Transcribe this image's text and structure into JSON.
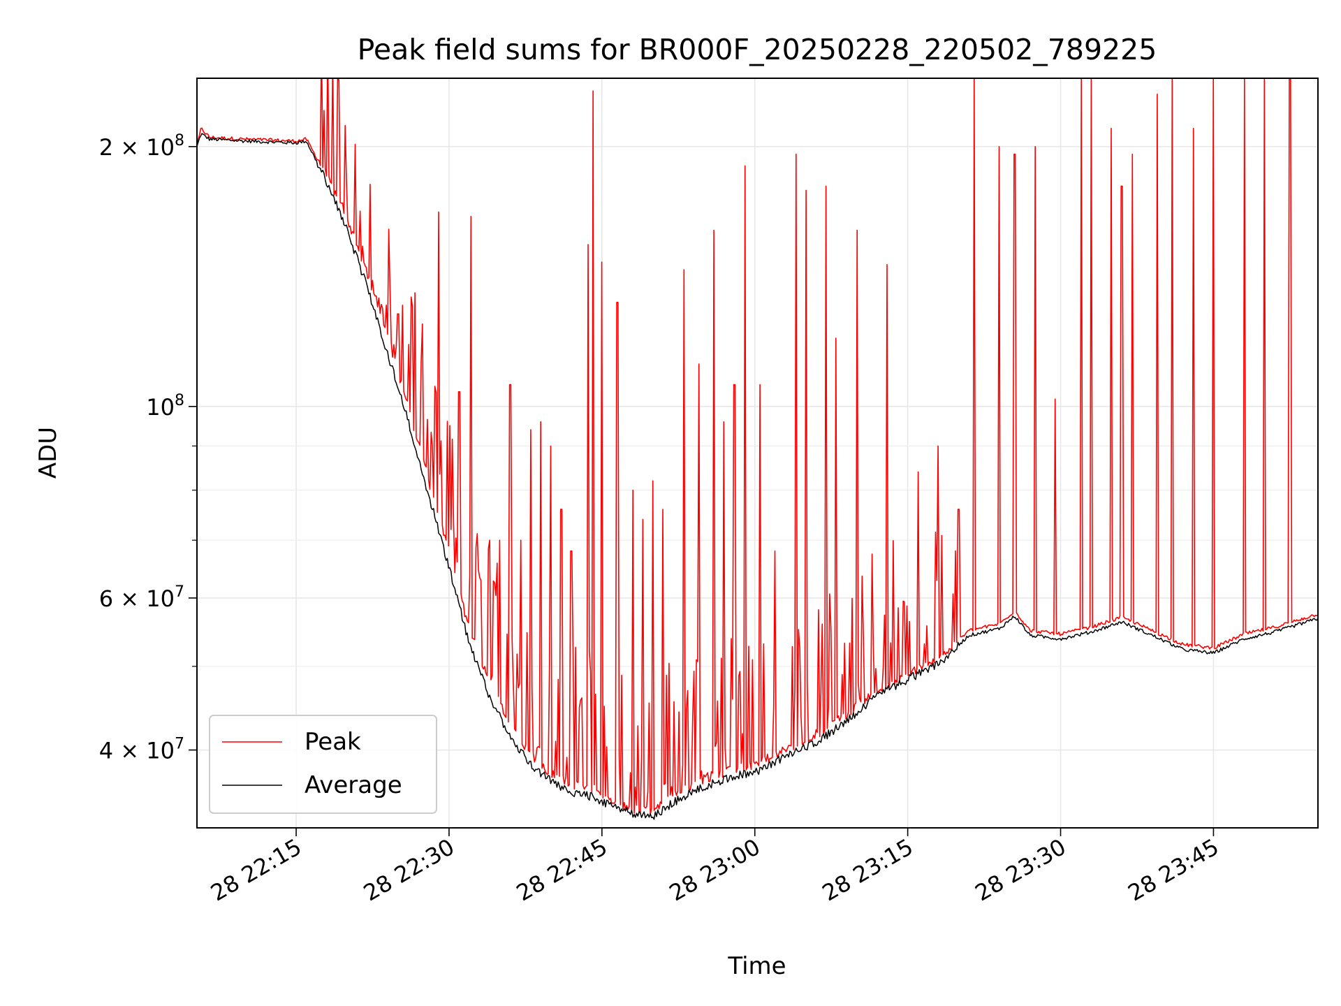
{
  "chart_data": {
    "type": "line",
    "title": "Peak field sums for BR000F_20250228_220502_789225",
    "xlabel": "Time",
    "ylabel": "ADU",
    "x_scale": "time",
    "y_scale": "log",
    "xlim": [
      "2025-02-28 22:05:16",
      "2025-02-28 23:55:15"
    ],
    "ylim": [
      32500000,
      240000000
    ],
    "grid": true,
    "legend": "lower-left",
    "x_tick_labels": [
      "28 22:15",
      "28 22:30",
      "28 22:45",
      "28 23:00",
      "28 23:15",
      "28 23:30",
      "28 23:45"
    ],
    "x_tick_values": [
      "2025-02-28 22:15",
      "2025-02-28 22:30",
      "2025-02-28 22:45",
      "2025-02-28 23:00",
      "2025-02-28 23:15",
      "2025-02-28 23:30",
      "2025-02-28 23:45"
    ],
    "y_major_ticks": [
      {
        "value": 40000000,
        "mantissa": "4",
        "exponent": "7"
      },
      {
        "value": 60000000,
        "mantissa": "6",
        "exponent": "7"
      },
      {
        "value": 100000000,
        "mantissa": "",
        "exponent": "8"
      },
      {
        "value": 200000000,
        "mantissa": "2",
        "exponent": "8"
      }
    ],
    "y_minor_ticks": [
      50000000,
      70000000,
      80000000,
      90000000
    ],
    "series": [
      {
        "name": "Peak",
        "color": "#ff0000",
        "points": [
          [
            "2025-02-28 22:05:16",
            200000000
          ],
          [
            "2025-02-28 22:05:40",
            210000000
          ],
          [
            "2025-02-28 22:06:30",
            205000000
          ],
          [
            "2025-02-28 22:10:00",
            204000000
          ],
          [
            "2025-02-28 22:15:00",
            203000000
          ],
          [
            "2025-02-28 22:16:00",
            204000000
          ],
          [
            "2025-02-28 22:18:00",
            185000000
          ],
          [
            "2025-02-28 22:20:00",
            165000000
          ],
          [
            "2025-02-28 22:22:00",
            142000000
          ],
          [
            "2025-02-28 22:24:00",
            120000000
          ],
          [
            "2025-02-28 22:26:00",
            100000000
          ],
          [
            "2025-02-28 22:28:00",
            82000000
          ],
          [
            "2025-02-28 22:30:00",
            68000000
          ],
          [
            "2025-02-28 22:32:00",
            55000000
          ],
          [
            "2025-02-28 22:34:00",
            48000000
          ],
          [
            "2025-02-28 22:36:00",
            43000000
          ],
          [
            "2025-02-28 22:38:00",
            39500000
          ],
          [
            "2025-02-28 22:40:00",
            37500000
          ],
          [
            "2025-02-28 22:42:00",
            36500000
          ],
          [
            "2025-02-28 22:44:00",
            36000000
          ],
          [
            "2025-02-28 22:46:00",
            35000000
          ],
          [
            "2025-02-28 22:48:00",
            34200000
          ],
          [
            "2025-02-28 22:50:00",
            34000000
          ],
          [
            "2025-02-28 22:52:00",
            35500000
          ],
          [
            "2025-02-28 22:55:00",
            37000000
          ],
          [
            "2025-02-28 22:58:00",
            38000000
          ],
          [
            "2025-02-28 23:00:00",
            38500000
          ],
          [
            "2025-02-28 23:03:00",
            40000000
          ],
          [
            "2025-02-28 23:06:00",
            41500000
          ],
          [
            "2025-02-28 23:09:00",
            44000000
          ],
          [
            "2025-02-28 23:12:00",
            47000000
          ],
          [
            "2025-02-28 23:15:00",
            49000000
          ],
          [
            "2025-02-28 23:18:00",
            51000000
          ],
          [
            "2025-02-28 23:21:00",
            55000000
          ],
          [
            "2025-02-28 23:24:00",
            56000000
          ],
          [
            "2025-02-28 23:25:30",
            58000000
          ],
          [
            "2025-02-28 23:27:00",
            55000000
          ],
          [
            "2025-02-28 23:30:00",
            54500000
          ],
          [
            "2025-02-28 23:33:00",
            55500000
          ],
          [
            "2025-02-28 23:36:00",
            57000000
          ],
          [
            "2025-02-28 23:39:00",
            55000000
          ],
          [
            "2025-02-28 23:42:00",
            53000000
          ],
          [
            "2025-02-28 23:45:00",
            52500000
          ],
          [
            "2025-02-28 23:48:00",
            54500000
          ],
          [
            "2025-02-28 23:51:00",
            55500000
          ],
          [
            "2025-02-28 23:55:15",
            57500000
          ]
        ],
        "spikes": [
          [
            "2025-02-28 22:19:30",
            172000000
          ],
          [
            "2025-02-28 22:22:30",
            140000000
          ],
          [
            "2025-02-28 22:23:30",
            130000000
          ],
          [
            "2025-02-28 22:25:00",
            128000000
          ],
          [
            "2025-02-28 22:26:00",
            118000000
          ],
          [
            "2025-02-28 22:29:00",
            168000000
          ],
          [
            "2025-02-28 22:31:00",
            104000000
          ],
          [
            "2025-02-28 22:32:10",
            166000000
          ],
          [
            "2025-02-28 22:34:00",
            70000000
          ],
          [
            "2025-02-28 22:35:00",
            70000000
          ],
          [
            "2025-02-28 22:36:00",
            106000000
          ],
          [
            "2025-02-28 22:37:00",
            70000000
          ],
          [
            "2025-02-28 22:38:00",
            94000000
          ],
          [
            "2025-02-28 22:39:00",
            96000000
          ],
          [
            "2025-02-28 22:40:00",
            90000000
          ],
          [
            "2025-02-28 22:41:00",
            76000000
          ],
          [
            "2025-02-28 22:42:00",
            68000000
          ],
          [
            "2025-02-28 22:43:40",
            154000000
          ],
          [
            "2025-02-28 22:44:10",
            232000000
          ],
          [
            "2025-02-28 22:45:00",
            147000000
          ],
          [
            "2025-02-28 22:46:30",
            132000000
          ],
          [
            "2025-02-28 22:48:00",
            80000000
          ],
          [
            "2025-02-28 22:49:00",
            74000000
          ],
          [
            "2025-02-28 22:50:00",
            82000000
          ],
          [
            "2025-02-28 22:51:00",
            76000000
          ],
          [
            "2025-02-28 22:53:00",
            144000000
          ],
          [
            "2025-02-28 22:54:30",
            112000000
          ],
          [
            "2025-02-28 22:56:00",
            160000000
          ],
          [
            "2025-02-28 22:57:00",
            96000000
          ],
          [
            "2025-02-28 22:58:00",
            106000000
          ],
          [
            "2025-02-28 22:59:00",
            190000000
          ],
          [
            "2025-02-28 23:00:30",
            106000000
          ],
          [
            "2025-02-28 23:02:00",
            68000000
          ],
          [
            "2025-02-28 23:04:00",
            196000000
          ],
          [
            "2025-02-28 23:05:00",
            178000000
          ],
          [
            "2025-02-28 23:07:00",
            180000000
          ],
          [
            "2025-02-28 23:08:00",
            120000000
          ],
          [
            "2025-02-28 23:10:00",
            160000000
          ],
          [
            "2025-02-28 23:13:00",
            146000000
          ],
          [
            "2025-02-28 23:16:00",
            84000000
          ],
          [
            "2025-02-28 23:18:00",
            90000000
          ],
          [
            "2025-02-28 23:20:00",
            76000000
          ],
          [
            "2025-02-28 23:21:30",
            240000000
          ],
          [
            "2025-02-28 23:24:00",
            200000000
          ],
          [
            "2025-02-28 23:25:30",
            196000000
          ],
          [
            "2025-02-28 23:27:30",
            200000000
          ],
          [
            "2025-02-28 23:29:30",
            102000000
          ],
          [
            "2025-02-28 23:32:00",
            240000000
          ],
          [
            "2025-02-28 23:33:00",
            240000000
          ],
          [
            "2025-02-28 23:35:00",
            210000000
          ],
          [
            "2025-02-28 23:36:00",
            180000000
          ],
          [
            "2025-02-28 23:37:00",
            196000000
          ],
          [
            "2025-02-28 23:39:30",
            230000000
          ],
          [
            "2025-02-28 23:41:00",
            240000000
          ],
          [
            "2025-02-28 23:43:00",
            210000000
          ],
          [
            "2025-02-28 23:45:00",
            240000000
          ],
          [
            "2025-02-28 23:48:00",
            240000000
          ],
          [
            "2025-02-28 23:50:00",
            240000000
          ],
          [
            "2025-02-28 23:52:30",
            240000000
          ]
        ]
      },
      {
        "name": "Average",
        "color": "#000000",
        "points": [
          [
            "2025-02-28 22:05:16",
            200000000
          ],
          [
            "2025-02-28 22:05:40",
            207000000
          ],
          [
            "2025-02-28 22:06:30",
            204000000
          ],
          [
            "2025-02-28 22:10:00",
            203000000
          ],
          [
            "2025-02-28 22:15:00",
            202000000
          ],
          [
            "2025-02-28 22:16:00",
            203000000
          ],
          [
            "2025-02-28 22:18:00",
            182000000
          ],
          [
            "2025-02-28 22:20:00",
            160000000
          ],
          [
            "2025-02-28 22:22:00",
            137000000
          ],
          [
            "2025-02-28 22:24:00",
            115000000
          ],
          [
            "2025-02-28 22:26:00",
            96000000
          ],
          [
            "2025-02-28 22:28:00",
            79000000
          ],
          [
            "2025-02-28 22:30:00",
            65000000
          ],
          [
            "2025-02-28 22:32:00",
            53000000
          ],
          [
            "2025-02-28 22:34:00",
            46000000
          ],
          [
            "2025-02-28 22:36:00",
            41500000
          ],
          [
            "2025-02-28 22:38:00",
            38500000
          ],
          [
            "2025-02-28 22:40:00",
            36800000
          ],
          [
            "2025-02-28 22:42:00",
            35800000
          ],
          [
            "2025-02-28 22:44:00",
            35300000
          ],
          [
            "2025-02-28 22:46:00",
            34500000
          ],
          [
            "2025-02-28 22:48:00",
            33800000
          ],
          [
            "2025-02-28 22:50:00",
            33400000
          ],
          [
            "2025-02-28 22:52:00",
            34800000
          ],
          [
            "2025-02-28 22:55:00",
            36300000
          ],
          [
            "2025-02-28 22:58:00",
            37300000
          ],
          [
            "2025-02-28 23:00:00",
            37700000
          ],
          [
            "2025-02-28 23:03:00",
            39300000
          ],
          [
            "2025-02-28 23:06:00",
            40800000
          ],
          [
            "2025-02-28 23:09:00",
            43200000
          ],
          [
            "2025-02-28 23:12:00",
            46300000
          ],
          [
            "2025-02-28 23:15:00",
            48300000
          ],
          [
            "2025-02-28 23:18:00",
            50300000
          ],
          [
            "2025-02-28 23:21:00",
            54300000
          ],
          [
            "2025-02-28 23:24:00",
            55300000
          ],
          [
            "2025-02-28 23:25:30",
            57200000
          ],
          [
            "2025-02-28 23:27:00",
            54300000
          ],
          [
            "2025-02-28 23:30:00",
            53800000
          ],
          [
            "2025-02-28 23:33:00",
            54800000
          ],
          [
            "2025-02-28 23:36:00",
            56300000
          ],
          [
            "2025-02-28 23:39:00",
            54300000
          ],
          [
            "2025-02-28 23:42:00",
            52300000
          ],
          [
            "2025-02-28 23:45:00",
            51800000
          ],
          [
            "2025-02-28 23:48:00",
            53800000
          ],
          [
            "2025-02-28 23:51:00",
            54800000
          ],
          [
            "2025-02-28 23:55:15",
            56800000
          ]
        ]
      }
    ]
  }
}
